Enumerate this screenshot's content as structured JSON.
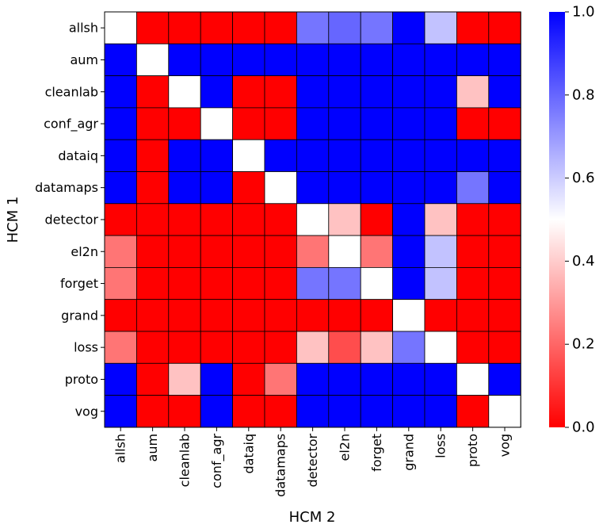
{
  "chart_data": {
    "type": "heatmap",
    "title": "",
    "xlabel": "HCM 2",
    "ylabel": "HCM 1",
    "x_categories": [
      "allsh",
      "aum",
      "cleanlab",
      "conf_agr",
      "dataiq",
      "datamaps",
      "detector",
      "el2n",
      "forget",
      "grand",
      "loss",
      "proto",
      "vog"
    ],
    "y_categories": [
      "allsh",
      "aum",
      "cleanlab",
      "conf_agr",
      "dataiq",
      "datamaps",
      "detector",
      "el2n",
      "forget",
      "grand",
      "loss",
      "proto",
      "vog"
    ],
    "values": [
      [
        0.5,
        0.0,
        0.0,
        0.0,
        0.0,
        0.0,
        0.77,
        0.8,
        0.77,
        1.0,
        0.62,
        0.0,
        0.0
      ],
      [
        1.0,
        0.5,
        1.0,
        1.0,
        1.0,
        1.0,
        1.0,
        1.0,
        1.0,
        1.0,
        1.0,
        1.0,
        1.0
      ],
      [
        1.0,
        0.0,
        0.5,
        1.0,
        0.0,
        0.0,
        1.0,
        1.0,
        1.0,
        1.0,
        1.0,
        0.38,
        1.0
      ],
      [
        1.0,
        0.0,
        0.0,
        0.5,
        0.0,
        0.0,
        1.0,
        1.0,
        1.0,
        1.0,
        1.0,
        0.0,
        0.0
      ],
      [
        1.0,
        0.0,
        1.0,
        1.0,
        0.5,
        1.0,
        1.0,
        1.0,
        1.0,
        1.0,
        1.0,
        1.0,
        1.0
      ],
      [
        1.0,
        0.0,
        1.0,
        1.0,
        0.0,
        0.5,
        1.0,
        1.0,
        1.0,
        1.0,
        1.0,
        0.77,
        1.0
      ],
      [
        0.0,
        0.0,
        0.0,
        0.0,
        0.0,
        0.0,
        0.5,
        0.38,
        0.0,
        1.0,
        0.38,
        0.0,
        0.0
      ],
      [
        0.23,
        0.0,
        0.0,
        0.0,
        0.0,
        0.0,
        0.23,
        0.5,
        0.23,
        1.0,
        0.62,
        0.0,
        0.0
      ],
      [
        0.23,
        0.0,
        0.0,
        0.0,
        0.0,
        0.0,
        0.77,
        0.77,
        0.5,
        1.0,
        0.62,
        0.0,
        0.0
      ],
      [
        0.0,
        0.0,
        0.0,
        0.0,
        0.0,
        0.0,
        0.0,
        0.0,
        0.0,
        0.5,
        0.0,
        0.0,
        0.0
      ],
      [
        0.23,
        0.0,
        0.0,
        0.0,
        0.0,
        0.0,
        0.38,
        0.15,
        0.38,
        0.77,
        0.5,
        0.0,
        0.0
      ],
      [
        1.0,
        0.0,
        0.38,
        1.0,
        0.0,
        0.23,
        1.0,
        1.0,
        1.0,
        1.0,
        1.0,
        0.5,
        1.0
      ],
      [
        1.0,
        0.0,
        0.0,
        1.0,
        0.0,
        0.0,
        1.0,
        1.0,
        1.0,
        1.0,
        1.0,
        0.0,
        0.5
      ]
    ],
    "colormap": {
      "low": "#ff0000",
      "mid": "#ffffff",
      "high": "#0000ff"
    },
    "colorbar": {
      "range": [
        0.0,
        1.0
      ],
      "ticks": [
        0.0,
        0.2,
        0.4,
        0.6,
        0.8,
        1.0
      ],
      "tick_labels": [
        "0.0",
        "0.2",
        "0.4",
        "0.6",
        "0.8",
        "1.0"
      ]
    },
    "grid": true,
    "legend": "colorbar-right"
  }
}
